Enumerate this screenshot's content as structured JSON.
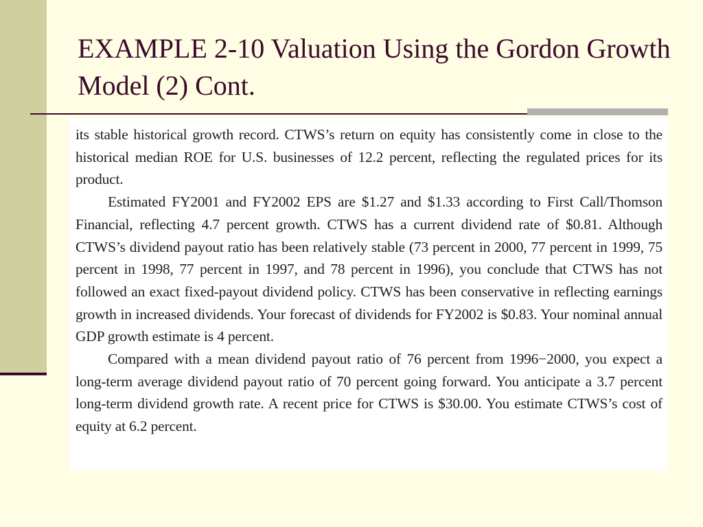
{
  "slide": {
    "title": "EXAMPLE 2-10 Valuation Using the Gordon Growth Model (2) Cont."
  },
  "body": {
    "paragraphs": [
      "its stable historical growth record. CTWS’s return on equity has consistently come in close to the historical median ROE for U.S. businesses of 12.2 percent, reflecting the regulated prices for its product.",
      "Estimated FY2001 and FY2002 EPS are $1.27 and $1.33 according to First Call/Thomson Financial, reflecting 4.7 percent growth. CTWS has a current dividend rate of $0.81. Although CTWS’s dividend payout ratio has been relatively stable (73 percent in 2000, 77 percent in 1999, 75 percent in 1998, 77 percent in 1997, and 78 percent in 1996), you conclude that CTWS has not followed an exact fixed-payout dividend policy. CTWS has been conservative in reflecting earnings growth in increased dividends. Your forecast of dividends for FY2002 is $0.83. Your nominal annual GDP growth estimate is 4 percent.",
      "Compared with a mean dividend payout ratio of 76 percent from 1996−2000, you expect a long-term average dividend payout ratio of 70 percent going forward. You anticipate a 3.7 percent long-term dividend growth rate. A recent price for CTWS is $30.00. You estimate CTWS’s cost of equity at 6.2 percent."
    ]
  },
  "colors": {
    "background": "#fffde4",
    "left_bar": "#cfcf9f",
    "title": "#3a0a2a",
    "rule_accent": "#b0b0b0"
  }
}
